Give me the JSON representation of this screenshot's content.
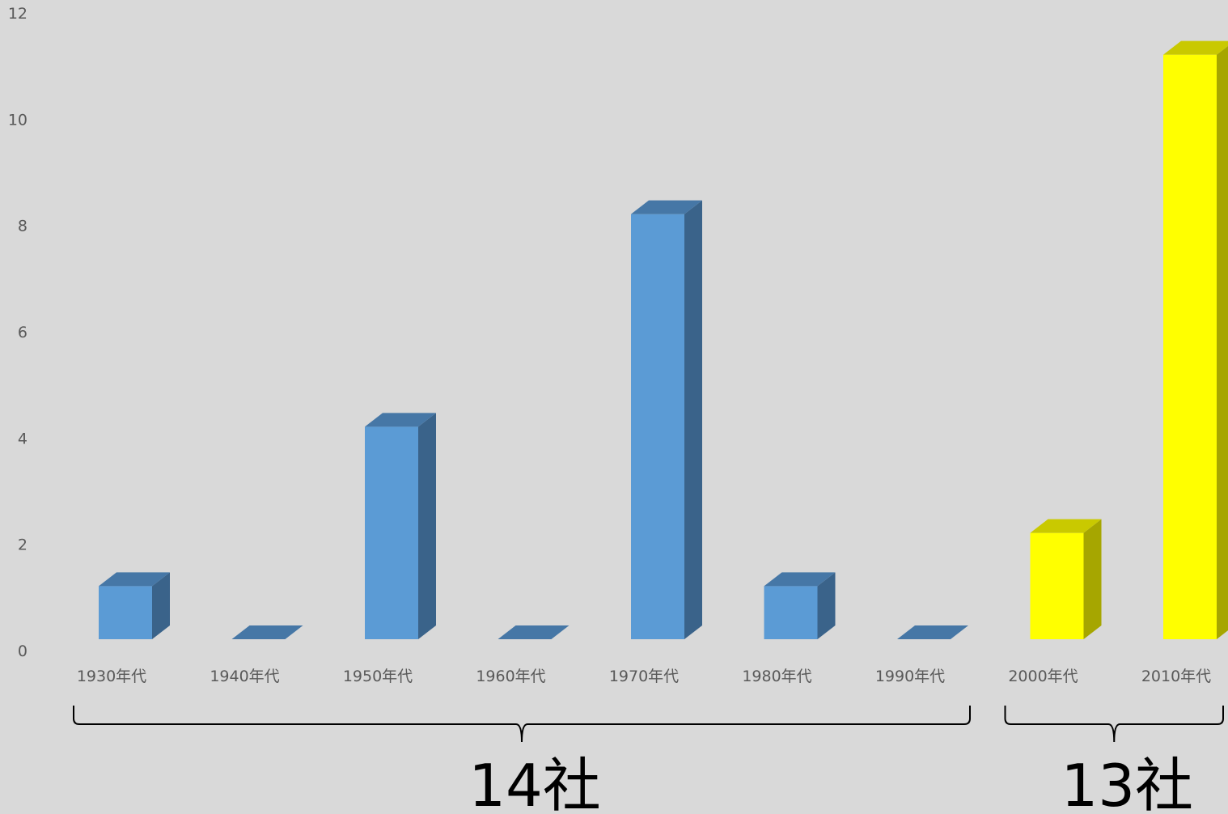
{
  "chart_data": {
    "type": "bar",
    "categories": [
      "1930年代",
      "1940年代",
      "1950年代",
      "1960年代",
      "1970年代",
      "1980年代",
      "1990年代",
      "2000年代",
      "2010年代"
    ],
    "values": [
      1,
      0,
      4,
      0,
      8,
      1,
      0,
      2,
      11
    ],
    "ylim": [
      0,
      12
    ],
    "yticks": [
      0,
      2,
      4,
      6,
      8,
      10,
      12
    ],
    "grid": false,
    "legend": "none",
    "bar_style": "3d-column",
    "bar_colors": [
      "#5b9bd5",
      "#5b9bd5",
      "#5b9bd5",
      "#5b9bd5",
      "#5b9bd5",
      "#5b9bd5",
      "#5b9bd5",
      "#ffff00",
      "#ffff00"
    ],
    "group_annotations": [
      {
        "label": "14社",
        "from_category": 0,
        "to_category": 6
      },
      {
        "label": "13社",
        "from_category": 7,
        "to_category": 8
      }
    ]
  },
  "colors": {
    "background": "#d9d9d9",
    "blue_front": "#5b9bd5",
    "blue_side": "#3a638a",
    "blue_top": "#4677a6",
    "yellow_front": "#ffff00",
    "yellow_side": "#a6a600",
    "yellow_top": "#c9c900",
    "tick_text": "#595959",
    "annotation": "#000000"
  }
}
